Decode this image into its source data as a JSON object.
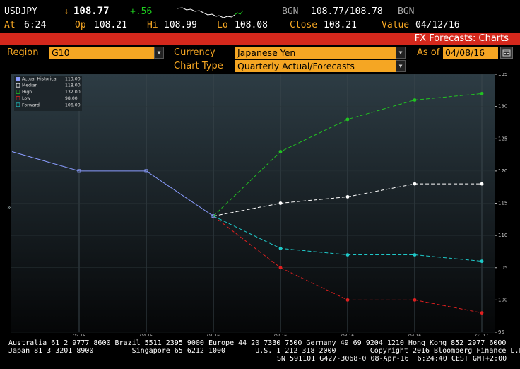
{
  "ticker": {
    "symbol": "USDJPY",
    "arrow": "↓",
    "last": "108.77",
    "change": "+.56",
    "source": "BGN",
    "bid_ask": "108.77/108.78",
    "source2": "BGN",
    "at_label": "At",
    "at_time": "6:24",
    "op_label": "Op",
    "op": "108.21",
    "hi_label": "Hi",
    "hi": "108.99",
    "lo_label": "Lo",
    "lo": "108.08",
    "close_label": "Close",
    "close": "108.21",
    "value_label": "Value",
    "value_date": "04/12/16"
  },
  "header": {
    "title": "FX Forecasts: Charts"
  },
  "controls": {
    "region_label": "Region",
    "region_value": "G10",
    "currency_label": "Currency",
    "currency_value": "Japanese Yen",
    "asof_label": "As of",
    "asof_value": "04/08/16",
    "charttype_label": "Chart Type",
    "charttype_value": "Quarterly Actual/Forecasts"
  },
  "chart_data": {
    "type": "line",
    "categories": [
      "Q3 15",
      "Q4 15",
      "Q1 16",
      "Q2 16",
      "Q3 16",
      "Q4 16",
      "Q1 17"
    ],
    "ylim": [
      95,
      135
    ],
    "yticks": [
      95,
      100,
      105,
      110,
      115,
      120,
      125,
      130,
      135
    ],
    "legend": [
      {
        "name": "Actual Historical",
        "value": "113.00",
        "color": "#8a9cff"
      },
      {
        "name": "Median",
        "value": "118.00",
        "color": "#ffffff"
      },
      {
        "name": "High",
        "value": "132.00",
        "color": "#22c222"
      },
      {
        "name": "Low",
        "value": "98.00",
        "color": "#e02020"
      },
      {
        "name": "Forward",
        "value": "106.00",
        "color": "#1fc8c8"
      }
    ],
    "series": [
      {
        "name": "Actual Historical",
        "color": "#8a9cff",
        "dashed": false,
        "marker": "square",
        "points": [
          [
            -1,
            123
          ],
          [
            0,
            120
          ],
          [
            1,
            120
          ],
          [
            2,
            113
          ]
        ]
      },
      {
        "name": "Median",
        "color": "#ffffff",
        "dashed": true,
        "marker": "circle",
        "points": [
          [
            2,
            113
          ],
          [
            3,
            115
          ],
          [
            4,
            116
          ],
          [
            5,
            118
          ],
          [
            6,
            118
          ]
        ]
      },
      {
        "name": "High",
        "color": "#22c222",
        "dashed": true,
        "marker": "circle",
        "points": [
          [
            2,
            113
          ],
          [
            3,
            123
          ],
          [
            4,
            128
          ],
          [
            5,
            131
          ],
          [
            6,
            132
          ]
        ]
      },
      {
        "name": "Low",
        "color": "#e02020",
        "dashed": true,
        "marker": "circle",
        "points": [
          [
            2,
            113
          ],
          [
            3,
            105
          ],
          [
            4,
            100
          ],
          [
            5,
            100
          ],
          [
            6,
            98
          ]
        ]
      },
      {
        "name": "Forward",
        "color": "#1fc8c8",
        "dashed": true,
        "marker": "circle",
        "points": [
          [
            2,
            113
          ],
          [
            3,
            108
          ],
          [
            4,
            107
          ],
          [
            5,
            107
          ],
          [
            6,
            106
          ]
        ]
      }
    ]
  },
  "footer": {
    "line1": "Australia 61 2 9777 8600 Brazil 5511 2395 9000 Europe 44 20 7330 7500 Germany 49 69 9204 1210 Hong Kong 852 2977 6000",
    "line2": "Japan 81 3 3201 8900         Singapore 65 6212 1000       U.S. 1 212 318 2000        Copyright 2016 Bloomberg Finance L.P.",
    "line3": "SN 591101 G427-3068-0 08-Apr-16  6:24:40 CEST GMT+2:00"
  }
}
